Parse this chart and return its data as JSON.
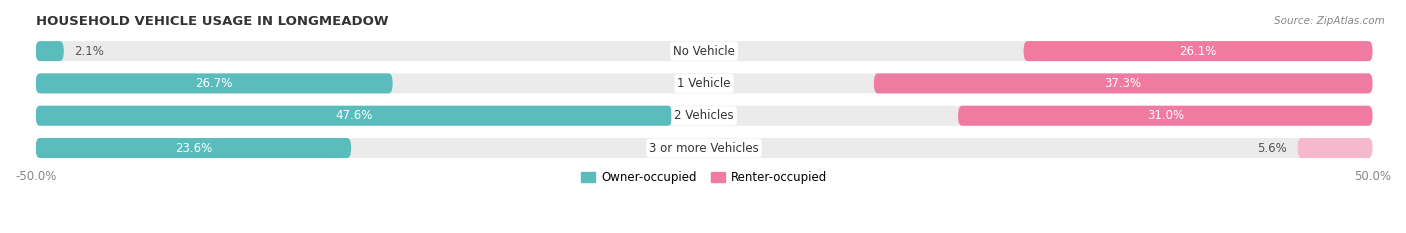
{
  "title": "HOUSEHOLD VEHICLE USAGE IN LONGMEADOW",
  "source": "Source: ZipAtlas.com",
  "categories": [
    "No Vehicle",
    "1 Vehicle",
    "2 Vehicles",
    "3 or more Vehicles"
  ],
  "owner_values": [
    2.1,
    26.7,
    47.6,
    23.6
  ],
  "renter_values": [
    26.1,
    37.3,
    31.0,
    5.6
  ],
  "owner_color": "#5bbcbe",
  "renter_color": "#f07aa0",
  "renter_color_light": "#f5b8cc",
  "bar_bg_color": "#ebebeb",
  "bar_height": 0.62,
  "label_fontsize": 8.5,
  "value_fontsize": 8.5,
  "title_fontsize": 9.5,
  "legend_fontsize": 8.5,
  "source_fontsize": 7.5
}
